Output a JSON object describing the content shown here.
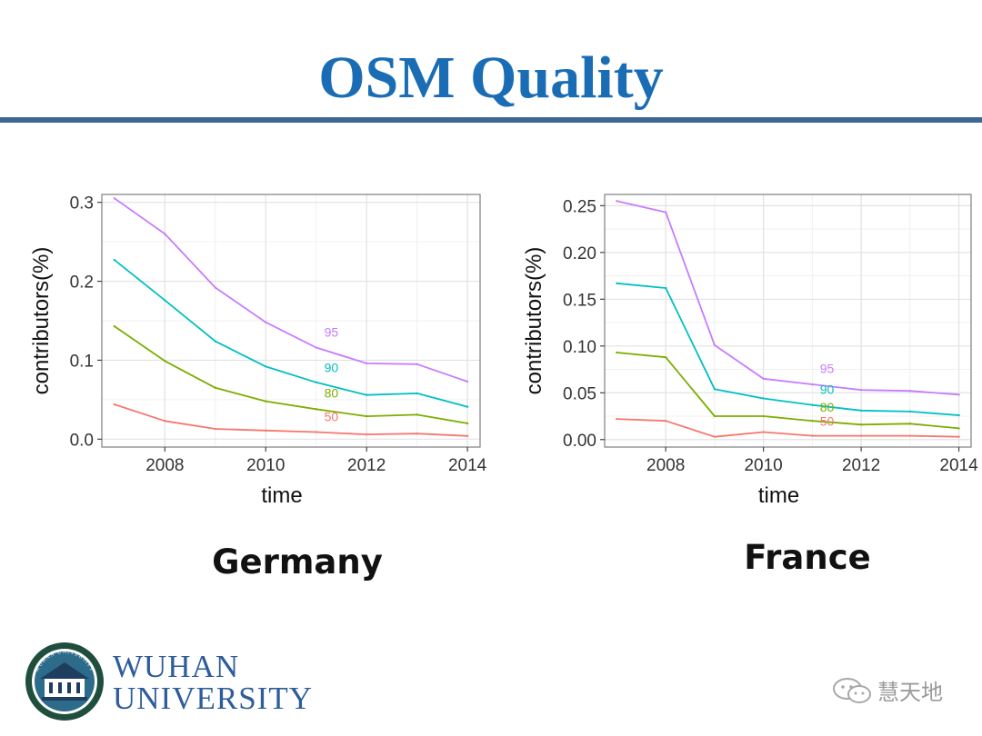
{
  "slide": {
    "title": "OSM Quality",
    "logo": {
      "line1": "WUHAN",
      "line2": "UNIVERSITY",
      "seal_text": "WUHAN UNIVERSITY"
    },
    "watermark": "慧天地",
    "colors": {
      "title": "#1a6db5",
      "rule": "#3e6796",
      "logo_text": "#2d5d9a"
    }
  },
  "chart_data": [
    {
      "type": "line",
      "caption": "Germany",
      "xlabel": "time",
      "ylabel": "contributors(%)",
      "xlim": [
        2006.75,
        2014.25
      ],
      "ylim": [
        -0.01,
        0.31
      ],
      "xticks": [
        2008,
        2010,
        2012,
        2014
      ],
      "yticks": [
        0.0,
        0.1,
        0.2,
        0.3
      ],
      "ytick_labels": [
        "0.0",
        "0.1",
        "0.2",
        "0.3"
      ],
      "grid": true,
      "x": [
        2007,
        2008,
        2009,
        2010,
        2011,
        2012,
        2013,
        2014
      ],
      "series": [
        {
          "name": "95",
          "color": "#c77cff",
          "values": [
            0.305,
            0.26,
            0.192,
            0.148,
            0.116,
            0.096,
            0.095,
            0.073
          ],
          "label_at": [
            2011.3,
            0.13
          ]
        },
        {
          "name": "90",
          "color": "#00bfc4",
          "values": [
            0.227,
            0.176,
            0.124,
            0.092,
            0.072,
            0.056,
            0.058,
            0.041
          ],
          "label_at": [
            2011.3,
            0.085
          ]
        },
        {
          "name": "80",
          "color": "#7cae00",
          "values": [
            0.143,
            0.099,
            0.065,
            0.048,
            0.038,
            0.029,
            0.031,
            0.02
          ],
          "label_at": [
            2011.3,
            0.053
          ]
        },
        {
          "name": "50",
          "color": "#f8766d",
          "values": [
            0.044,
            0.023,
            0.013,
            0.011,
            0.009,
            0.006,
            0.007,
            0.004
          ],
          "label_at": [
            2011.3,
            0.023
          ]
        }
      ]
    },
    {
      "type": "line",
      "caption": "France",
      "xlabel": "time",
      "ylabel": "contributors(%)",
      "xlim": [
        2006.75,
        2014.25
      ],
      "ylim": [
        -0.008,
        0.262
      ],
      "xticks": [
        2008,
        2010,
        2012,
        2014
      ],
      "yticks": [
        0.0,
        0.05,
        0.1,
        0.15,
        0.2,
        0.25
      ],
      "ytick_labels": [
        "0.00",
        "0.05",
        "0.10",
        "0.15",
        "0.20",
        "0.25"
      ],
      "grid": true,
      "x": [
        2007,
        2008,
        2009,
        2010,
        2011,
        2012,
        2013,
        2014
      ],
      "series": [
        {
          "name": "95",
          "color": "#c77cff",
          "values": [
            0.255,
            0.243,
            0.101,
            0.065,
            0.059,
            0.053,
            0.052,
            0.048
          ],
          "label_at": [
            2011.3,
            0.071
          ]
        },
        {
          "name": "90",
          "color": "#00bfc4",
          "values": [
            0.167,
            0.162,
            0.054,
            0.044,
            0.037,
            0.031,
            0.03,
            0.026
          ],
          "label_at": [
            2011.3,
            0.049
          ]
        },
        {
          "name": "80",
          "color": "#7cae00",
          "values": [
            0.093,
            0.088,
            0.025,
            0.025,
            0.02,
            0.016,
            0.017,
            0.012
          ],
          "label_at": [
            2011.3,
            0.03
          ]
        },
        {
          "name": "50",
          "color": "#f8766d",
          "values": [
            0.022,
            0.02,
            0.003,
            0.008,
            0.004,
            0.004,
            0.004,
            0.003
          ],
          "label_at": [
            2011.3,
            0.015
          ]
        }
      ]
    }
  ]
}
